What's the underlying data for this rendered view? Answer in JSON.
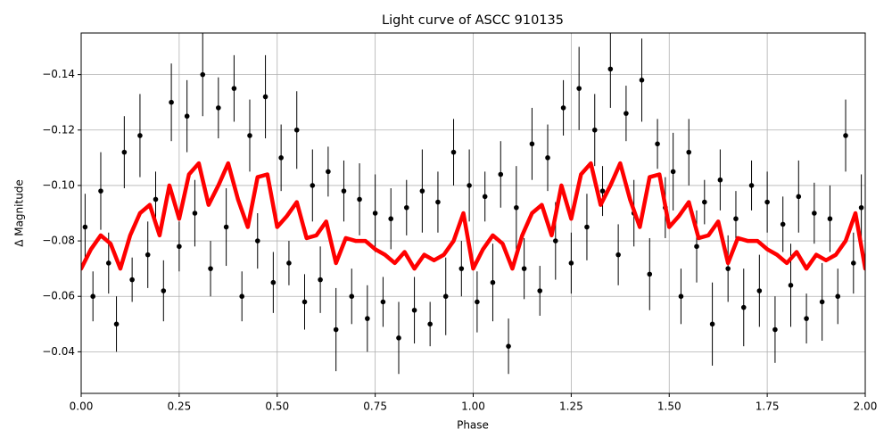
{
  "chart_data": {
    "type": "scatter_errorbar",
    "title": "Light curve of ASCC 910135",
    "x_label": "Phase",
    "y_label": "Δ Magnitude",
    "xlim": [
      0,
      2
    ],
    "ylim": [
      -0.025,
      -0.155
    ],
    "y_inverted": true,
    "grid": true,
    "xticks": [
      {
        "value": 0,
        "label": "0.00"
      },
      {
        "value": 0.25,
        "label": "0.25"
      },
      {
        "value": 0.5,
        "label": "0.50"
      },
      {
        "value": 0.75,
        "label": "0.75"
      },
      {
        "value": 1,
        "label": "1.00"
      },
      {
        "value": 1.25,
        "label": "1.25"
      },
      {
        "value": 1.5,
        "label": "1.50"
      },
      {
        "value": 1.75,
        "label": "1.75"
      },
      {
        "value": 2,
        "label": "2.00"
      }
    ],
    "yticks": [
      {
        "value": -0.14,
        "label": "−0.14"
      },
      {
        "value": -0.12,
        "label": "−0.12"
      },
      {
        "value": -0.1,
        "label": "−0.10"
      },
      {
        "value": -0.08,
        "label": "−0.08"
      },
      {
        "value": -0.06,
        "label": "−0.06"
      },
      {
        "value": -0.04,
        "label": "−0.04"
      }
    ],
    "series": [
      {
        "kind": "errorbar",
        "color": "#000000",
        "x": [
          0.01,
          0.03,
          0.05,
          0.07,
          0.09,
          0.11,
          0.13,
          0.15,
          0.17,
          0.19,
          0.21,
          0.23,
          0.25,
          0.27,
          0.29,
          0.31,
          0.33,
          0.35,
          0.37,
          0.39,
          0.41,
          0.43,
          0.45,
          0.47,
          0.49,
          0.51,
          0.53,
          0.55,
          0.57,
          0.59,
          0.61,
          0.63,
          0.65,
          0.67,
          0.69,
          0.71,
          0.73,
          0.75,
          0.77,
          0.79,
          0.81,
          0.83,
          0.85,
          0.87,
          0.89,
          0.91,
          0.93,
          0.95,
          0.97,
          0.99,
          1.01,
          1.03,
          1.05,
          1.07,
          1.09,
          1.11,
          1.13,
          1.15,
          1.17,
          1.19,
          1.21,
          1.23,
          1.25,
          1.27,
          1.29,
          1.31,
          1.33,
          1.35,
          1.37,
          1.39,
          1.41,
          1.43,
          1.45,
          1.47,
          1.49,
          1.51,
          1.53,
          1.55,
          1.57,
          1.59,
          1.61,
          1.63,
          1.65,
          1.67,
          1.69,
          1.71,
          1.73,
          1.75,
          1.77,
          1.79,
          1.81,
          1.83,
          1.85,
          1.87,
          1.89,
          1.91,
          1.93,
          1.95,
          1.97,
          1.99
        ],
        "values": [
          -0.085,
          -0.06,
          -0.098,
          -0.072,
          -0.05,
          -0.112,
          -0.066,
          -0.118,
          -0.075,
          -0.095,
          -0.062,
          -0.13,
          -0.078,
          -0.125,
          -0.09,
          -0.14,
          -0.07,
          -0.128,
          -0.085,
          -0.135,
          -0.06,
          -0.118,
          -0.08,
          -0.132,
          -0.065,
          -0.11,
          -0.072,
          -0.12,
          -0.058,
          -0.1,
          -0.066,
          -0.105,
          -0.048,
          -0.098,
          -0.06,
          -0.095,
          -0.052,
          -0.09,
          -0.058,
          -0.088,
          -0.045,
          -0.092,
          -0.055,
          -0.098,
          -0.05,
          -0.094,
          -0.06,
          -0.112,
          -0.07,
          -0.1,
          -0.058,
          -0.096,
          -0.065,
          -0.104,
          -0.042,
          -0.092,
          -0.07,
          -0.115,
          -0.062,
          -0.11,
          -0.08,
          -0.128,
          -0.072,
          -0.135,
          -0.085,
          -0.12,
          -0.098,
          -0.142,
          -0.075,
          -0.126,
          -0.09,
          -0.138,
          -0.068,
          -0.115,
          -0.092,
          -0.105,
          -0.06,
          -0.112,
          -0.078,
          -0.094,
          -0.05,
          -0.102,
          -0.07,
          -0.088,
          -0.056,
          -0.1,
          -0.062,
          -0.094,
          -0.048,
          -0.086,
          -0.064,
          -0.096,
          -0.052,
          -0.09,
          -0.058,
          -0.088,
          -0.06,
          -0.118,
          -0.072,
          -0.092
        ],
        "errors": [
          0.012,
          0.009,
          0.014,
          0.011,
          0.01,
          0.013,
          0.008,
          0.015,
          0.012,
          0.01,
          0.011,
          0.014,
          0.009,
          0.013,
          0.012,
          0.015,
          0.01,
          0.011,
          0.014,
          0.012,
          0.009,
          0.013,
          0.01,
          0.015,
          0.011,
          0.012,
          0.008,
          0.014,
          0.01,
          0.013,
          0.012,
          0.009,
          0.015,
          0.011,
          0.01,
          0.013,
          0.012,
          0.014,
          0.009,
          0.011,
          0.013,
          0.01,
          0.012,
          0.015,
          0.008,
          0.011,
          0.014,
          0.012,
          0.01,
          0.013,
          0.011,
          0.009,
          0.014,
          0.012,
          0.01,
          0.015,
          0.011,
          0.013,
          0.009,
          0.012,
          0.014,
          0.01,
          0.011,
          0.015,
          0.012,
          0.013,
          0.009,
          0.014,
          0.011,
          0.01,
          0.012,
          0.015,
          0.013,
          0.009,
          0.011,
          0.014,
          0.01,
          0.012,
          0.013,
          0.008,
          0.015,
          0.011,
          0.012,
          0.01,
          0.014,
          0.009,
          0.013,
          0.011,
          0.012,
          0.01,
          0.015,
          0.013,
          0.009,
          0.011,
          0.014,
          0.012,
          0.01,
          0.013,
          0.011,
          0.012
        ]
      },
      {
        "kind": "line",
        "color": "#ff0000",
        "x": [
          0,
          0.025,
          0.05,
          0.075,
          0.1,
          0.125,
          0.15,
          0.175,
          0.2,
          0.225,
          0.25,
          0.275,
          0.3,
          0.325,
          0.35,
          0.375,
          0.4,
          0.425,
          0.45,
          0.475,
          0.5,
          0.525,
          0.55,
          0.575,
          0.6,
          0.625,
          0.65,
          0.675,
          0.7,
          0.725,
          0.75,
          0.775,
          0.8,
          0.825,
          0.85,
          0.875,
          0.9,
          0.925,
          0.95,
          0.975,
          1,
          1.025,
          1.05,
          1.075,
          1.1,
          1.125,
          1.15,
          1.175,
          1.2,
          1.225,
          1.25,
          1.275,
          1.3,
          1.325,
          1.35,
          1.375,
          1.4,
          1.425,
          1.45,
          1.475,
          1.5,
          1.525,
          1.55,
          1.575,
          1.6,
          1.625,
          1.65,
          1.675,
          1.7,
          1.725,
          1.75,
          1.775,
          1.8,
          1.825,
          1.85,
          1.875,
          1.9,
          1.925,
          1.95,
          1.975,
          2
        ],
        "values": [
          -0.07,
          -0.077,
          -0.082,
          -0.079,
          -0.07,
          -0.082,
          -0.09,
          -0.093,
          -0.082,
          -0.1,
          -0.088,
          -0.104,
          -0.108,
          -0.093,
          -0.1,
          -0.108,
          -0.095,
          -0.085,
          -0.103,
          -0.104,
          -0.085,
          -0.089,
          -0.094,
          -0.081,
          -0.082,
          -0.087,
          -0.072,
          -0.081,
          -0.08,
          -0.08,
          -0.077,
          -0.075,
          -0.072,
          -0.076,
          -0.07,
          -0.075,
          -0.073,
          -0.075,
          -0.08,
          -0.09,
          -0.07,
          -0.077,
          -0.082,
          -0.079,
          -0.07,
          -0.082,
          -0.09,
          -0.093,
          -0.082,
          -0.1,
          -0.088,
          -0.104,
          -0.108,
          -0.093,
          -0.1,
          -0.108,
          -0.095,
          -0.085,
          -0.103,
          -0.104,
          -0.085,
          -0.089,
          -0.094,
          -0.081,
          -0.082,
          -0.087,
          -0.072,
          -0.081,
          -0.08,
          -0.08,
          -0.077,
          -0.075,
          -0.072,
          -0.076,
          -0.07,
          -0.075,
          -0.073,
          -0.075,
          -0.08,
          -0.09,
          -0.07
        ]
      }
    ]
  }
}
